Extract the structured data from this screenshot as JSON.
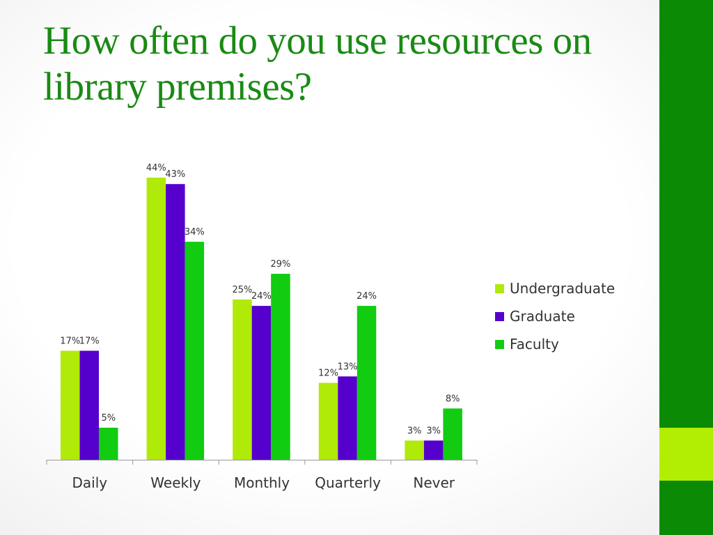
{
  "slide": {
    "title": "How often do you use resources on library premises?"
  },
  "colors": {
    "title": "#1a8a14",
    "band_dark": "#0b8a06",
    "band_lime": "#b2ee04"
  },
  "chart_data": {
    "type": "bar",
    "title": "",
    "xlabel": "",
    "ylabel": "",
    "ylim": [
      0,
      50
    ],
    "grid": false,
    "legend_position": "right",
    "categories": [
      "Daily",
      "Weekly",
      "Monthly",
      "Quarterly",
      "Never"
    ],
    "series": [
      {
        "name": "Undergraduate",
        "color": "#b0ea08",
        "values": [
          17,
          44,
          25,
          12,
          3
        ],
        "labels": [
          "17%",
          "44%",
          "25%",
          "12%",
          "3%"
        ]
      },
      {
        "name": "Graduate",
        "color": "#5500cc",
        "values": [
          17,
          43,
          24,
          13,
          3
        ],
        "labels": [
          "17%",
          "43%",
          "24%",
          "13%",
          "3%"
        ]
      },
      {
        "name": "Faculty",
        "color": "#11cc11",
        "values": [
          5,
          34,
          29,
          24,
          8
        ],
        "labels": [
          "5%",
          "34%",
          "29%",
          "24%",
          "8%"
        ]
      }
    ]
  }
}
